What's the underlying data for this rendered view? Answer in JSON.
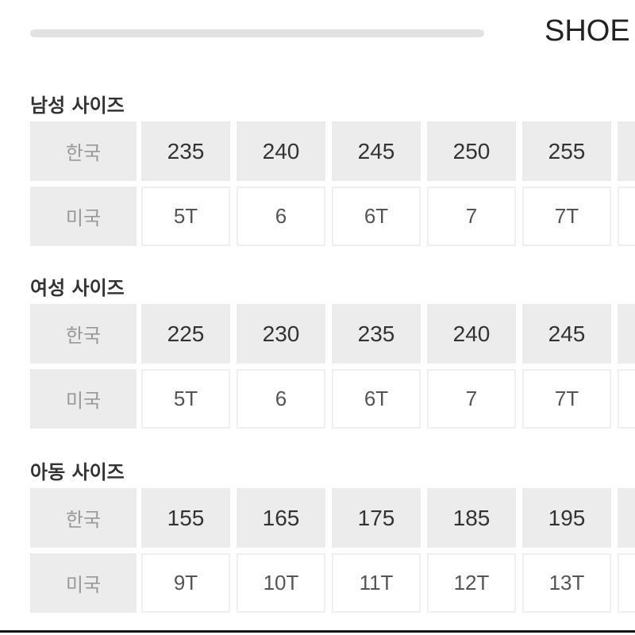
{
  "header": {
    "title": "SHOE"
  },
  "sections": [
    {
      "title": "남성 사이즈",
      "rows": [
        [
          "한국",
          "235",
          "240",
          "245",
          "250",
          "255"
        ],
        [
          "미국",
          "5T",
          "6",
          "6T",
          "7",
          "7T"
        ]
      ]
    },
    {
      "title": "여성 사이즈",
      "rows": [
        [
          "한국",
          "225",
          "230",
          "235",
          "240",
          "245"
        ],
        [
          "미국",
          "5T",
          "6",
          "6T",
          "7",
          "7T"
        ]
      ]
    },
    {
      "title": "아동 사이즈",
      "rows": [
        [
          "한국",
          "155",
          "165",
          "175",
          "185",
          "195"
        ],
        [
          "미국",
          "9T",
          "10T",
          "11T",
          "12T",
          "13T"
        ]
      ]
    }
  ]
}
